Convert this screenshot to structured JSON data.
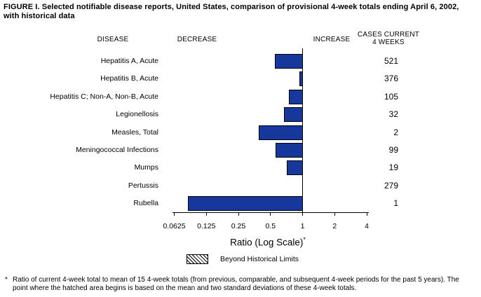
{
  "figure": {
    "title": "FIGURE I. Selected notifiable disease reports, United States, comparison of provisional 4-week totals ending April 6, 2002, with historical data",
    "columns": {
      "disease": "DISEASE",
      "decrease": "DECREASE",
      "increase": "INCREASE",
      "cases_line1": "CASES CURRENT",
      "cases_line2": "4 WEEKS"
    }
  },
  "chart_data": {
    "type": "bar",
    "orientation": "horizontal",
    "scale": "log2",
    "baseline_value": 1,
    "xlim": [
      0.0625,
      4
    ],
    "ticks": [
      0.0625,
      0.125,
      0.25,
      0.5,
      1,
      2,
      4
    ],
    "tick_labels": [
      "0.0625",
      "0.125",
      "0.25",
      "0.5",
      "1",
      "2",
      "4"
    ],
    "xlabel": "Ratio (Log Scale)",
    "xlabel_sup": "*",
    "bar_color": "#16389c",
    "grid": false,
    "rows": [
      {
        "disease": "Hepatitis A, Acute",
        "ratio": 0.55,
        "cases": "521"
      },
      {
        "disease": "Hepatitis B, Acute",
        "ratio": 0.93,
        "cases": "376"
      },
      {
        "disease": "Hepatitis C; Non-A, Non-B, Acute",
        "ratio": 0.74,
        "cases": "105"
      },
      {
        "disease": "Legionellosis",
        "ratio": 0.67,
        "cases": "32"
      },
      {
        "disease": "Measles, Total",
        "ratio": 0.39,
        "cases": "2"
      },
      {
        "disease": "Meningococcal Infections",
        "ratio": 0.56,
        "cases": "99"
      },
      {
        "disease": "Mumps",
        "ratio": 0.71,
        "cases": "19"
      },
      {
        "disease": "Pertussis",
        "ratio": 1.0,
        "cases": "279"
      },
      {
        "disease": "Rubella",
        "ratio": 0.084,
        "cases": "1"
      }
    ],
    "legend": {
      "symbol": "hatched-box",
      "label": "Beyond Historical Limits",
      "position": "bottom-center"
    }
  },
  "footnote": {
    "marker": "*",
    "text": "Ratio of current 4-week total to mean of 15 4-week totals (from previous, comparable, and subsequent 4-week periods for the past 5 years). The point where the hatched area begins is based on the mean and two standard deviations of these 4-week totals."
  }
}
